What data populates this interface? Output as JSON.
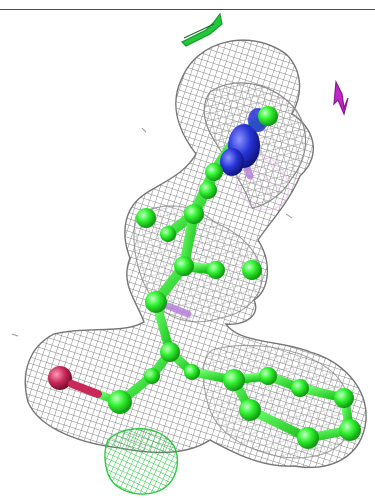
{
  "scene": {
    "background": "#ffffff",
    "colors": {
      "density_mesh": "#8f8f8f",
      "ligand_carbon": "#2cf52c",
      "nitrogen": "#1f2fd6",
      "oxygen": "#c8285a",
      "difference_mesh_green": "#22c83a",
      "difference_mesh_magenta": "#c026c8",
      "faint_pink_mesh": "#e7b6ea"
    }
  }
}
